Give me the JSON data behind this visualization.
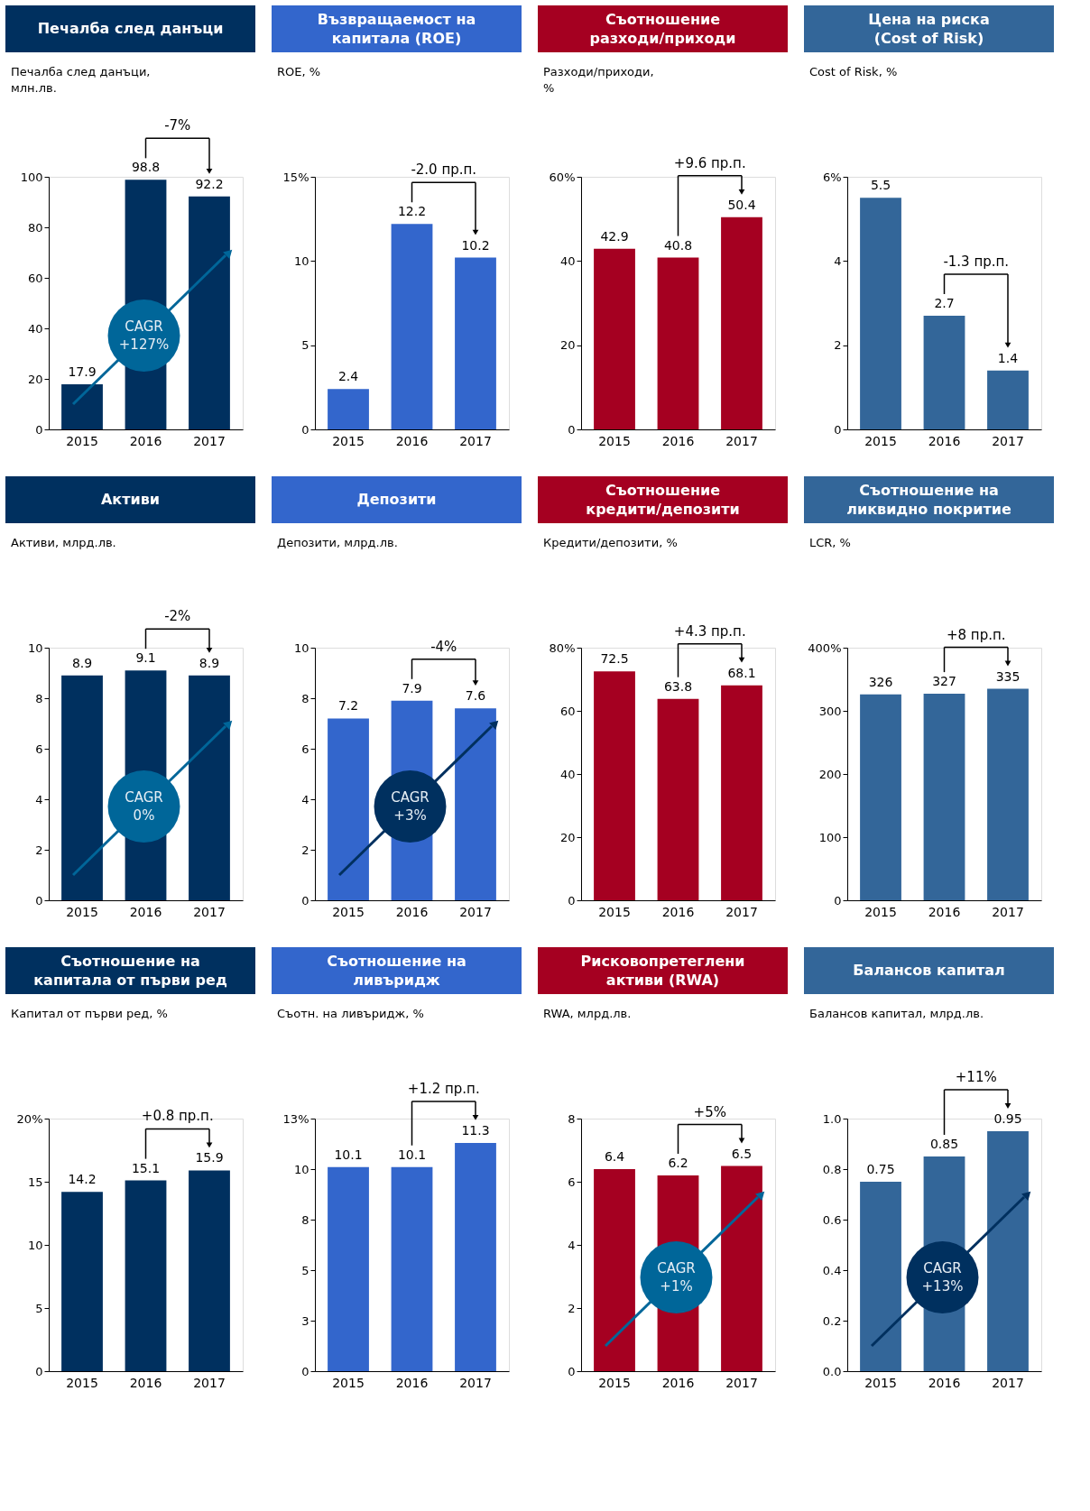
{
  "chart_data": [
    {
      "type": "bar",
      "title": "Печалба след данъци",
      "ylabel": "Печалба след данъци,\nмлн.лв.",
      "categories": [
        "2015",
        "2016",
        "2017"
      ],
      "values": [
        17.9,
        98.8,
        92.2
      ],
      "color": "#00305f",
      "ylim": [
        0,
        100
      ],
      "yticks": [
        0,
        20,
        40,
        60,
        80,
        100
      ],
      "data_labels": true,
      "annotations": [
        "-7%",
        "CAGR\n+127%"
      ]
    },
    {
      "type": "bar",
      "title": "Възвращаемост на\nкапитала (ROE)",
      "ylabel": "ROE, %",
      "categories": [
        "2015",
        "2016",
        "2017"
      ],
      "values": [
        2.4,
        12.2,
        10.2
      ],
      "color": "#3366cc",
      "ylim": [
        0,
        15
      ],
      "yticks": [
        0,
        5,
        10,
        {
          "value": 15,
          "label": "15%"
        }
      ],
      "data_labels": true,
      "annotations": [
        "-2.0 пр.п."
      ]
    },
    {
      "type": "bar",
      "title": "Съотношение\nразходи/приходи",
      "ylabel": "Разходи/приходи,\n%",
      "categories": [
        "2015",
        "2016",
        "2017"
      ],
      "values": [
        42.9,
        40.8,
        50.4
      ],
      "color": "#a50021",
      "ylim": [
        0,
        60
      ],
      "yticks": [
        0,
        20,
        40,
        {
          "value": 60,
          "label": "60%"
        }
      ],
      "data_labels": true,
      "annotations": [
        "+9.6 пр.п."
      ]
    },
    {
      "type": "bar",
      "title": "Цена на риска\n(Cost of Risk)",
      "ylabel": "Cost of Risk, %",
      "categories": [
        "2015",
        "2016",
        "2017"
      ],
      "values": [
        5.5,
        2.7,
        1.4
      ],
      "color": "#336699",
      "ylim": [
        0,
        6
      ],
      "yticks": [
        0,
        2,
        4,
        {
          "value": 6,
          "label": "6%"
        }
      ],
      "data_labels": true,
      "annotations": [
        "-1.3 пр.п."
      ]
    },
    {
      "type": "bar",
      "title": "Активи",
      "ylabel": "Активи, млрд.лв.",
      "categories": [
        "2015",
        "2016",
        "2017"
      ],
      "values": [
        8.9,
        9.1,
        8.9
      ],
      "color": "#00305f",
      "ylim": [
        0,
        10
      ],
      "yticks": [
        0,
        2,
        4,
        6,
        8,
        10
      ],
      "data_labels": true,
      "annotations": [
        "-2%",
        "CAGR\n0%"
      ]
    },
    {
      "type": "bar",
      "title": "Депозити",
      "ylabel": "Депозити, млрд.лв.",
      "categories": [
        "2015",
        "2016",
        "2017"
      ],
      "values": [
        7.2,
        7.9,
        7.6
      ],
      "color": "#3366cc",
      "ylim": [
        0,
        10
      ],
      "yticks": [
        0,
        2,
        4,
        6,
        8,
        10
      ],
      "data_labels": true,
      "annotations": [
        "-4%",
        "CAGR\n+3%"
      ]
    },
    {
      "type": "bar",
      "title": "Съотношение\nкредити/депозити",
      "ylabel": "Кредити/депозити, %",
      "categories": [
        "2015",
        "2016",
        "2017"
      ],
      "values": [
        72.5,
        63.8,
        68.1
      ],
      "color": "#a50021",
      "ylim": [
        0,
        80
      ],
      "yticks": [
        0,
        20,
        40,
        60,
        {
          "value": 80,
          "label": "80%"
        }
      ],
      "data_labels": true,
      "annotations": [
        "+4.3 пр.п."
      ]
    },
    {
      "type": "bar",
      "title": "Съотношение на\nликвидно покритие",
      "ylabel": "LCR, %",
      "categories": [
        "2015",
        "2016",
        "2017"
      ],
      "values": [
        326,
        327,
        335
      ],
      "color": "#336699",
      "ylim": [
        0,
        400
      ],
      "yticks": [
        0,
        100,
        200,
        300,
        {
          "value": 400,
          "label": "400%"
        }
      ],
      "data_labels": true,
      "annotations": [
        "+8 пр.п."
      ]
    },
    {
      "type": "bar",
      "title": "Съотношение на\nкапитала от първи ред",
      "ylabel": "Капитал от първи ред, %",
      "categories": [
        "2015",
        "2016",
        "2017"
      ],
      "values": [
        14.2,
        15.1,
        15.9
      ],
      "color": "#00305f",
      "ylim": [
        0,
        20
      ],
      "yticks": [
        0,
        5,
        10,
        15,
        {
          "value": 20,
          "label": "20%"
        }
      ],
      "data_labels": true,
      "annotations": [
        "+0.8 пр.п."
      ]
    },
    {
      "type": "bar",
      "title": "Съотношение на\nливъридж",
      "ylabel": "Съотн. на ливъридж, %",
      "categories": [
        "2015",
        "2016",
        "2017"
      ],
      "values": [
        10.1,
        10.1,
        11.3
      ],
      "color": "#3366cc",
      "ylim": [
        0,
        12.5
      ],
      "yticks": [
        0,
        {
          "value": 2.5,
          "label": "3"
        },
        5,
        {
          "value": 7.5,
          "label": "8"
        },
        10,
        {
          "value": 12.5,
          "label": "13%"
        }
      ],
      "data_labels": true,
      "annotations": [
        "+1.2 пр.п."
      ]
    },
    {
      "type": "bar",
      "title": "Рисковопретеглени\nактиви (RWA)",
      "ylabel": "RWA, млрд.лв.",
      "categories": [
        "2015",
        "2016",
        "2017"
      ],
      "values": [
        6.4,
        6.2,
        6.5
      ],
      "color": "#a50021",
      "ylim": [
        0,
        8
      ],
      "yticks": [
        0,
        2,
        4,
        6,
        8
      ],
      "data_labels": true,
      "annotations": [
        "+5%",
        "CAGR\n+1%"
      ]
    },
    {
      "type": "bar",
      "title": "Балансов капитал",
      "ylabel": "Балансов капитал, млрд.лв.",
      "categories": [
        "2015",
        "2016",
        "2017"
      ],
      "values": [
        0.75,
        0.85,
        0.95
      ],
      "color": "#336699",
      "ylim": [
        0,
        1
      ],
      "yticks": [
        {
          "value": 0,
          "label": "0.0"
        },
        {
          "value": 0.2,
          "label": "0.2"
        },
        {
          "value": 0.4,
          "label": "0.4"
        },
        {
          "value": 0.6,
          "label": "0.6"
        },
        {
          "value": 0.8,
          "label": "0.8"
        },
        {
          "value": 1,
          "label": "1.0"
        }
      ],
      "data_labels": true,
      "annotations": [
        "+11%",
        "CAGR\n+13%"
      ]
    }
  ]
}
